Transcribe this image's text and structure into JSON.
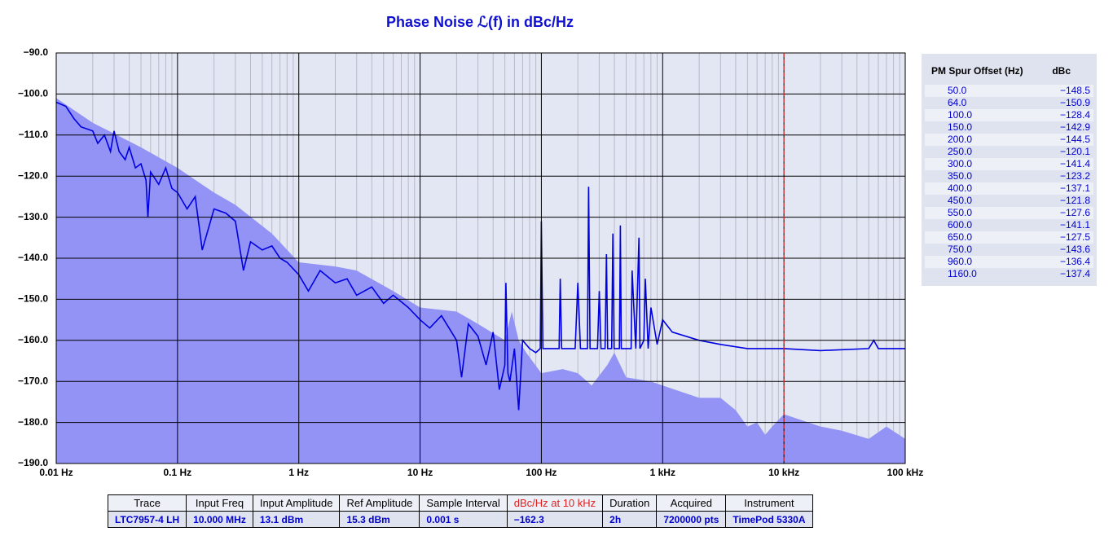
{
  "chart_data": {
    "type": "line",
    "title": "Phase Noise ℒ(f) in dBc/Hz",
    "log_x": true,
    "grid": true,
    "minor_grid": true,
    "xlim": [
      0.01,
      100000
    ],
    "ylim": [
      -190,
      -90
    ],
    "xticks": [
      {
        "value": 0.01,
        "label": "0.01 Hz"
      },
      {
        "value": 0.1,
        "label": "0.1 Hz"
      },
      {
        "value": 1,
        "label": "1 Hz"
      },
      {
        "value": 10,
        "label": "10 Hz"
      },
      {
        "value": 100,
        "label": "100 Hz"
      },
      {
        "value": 1000,
        "label": "1 kHz"
      },
      {
        "value": 10000,
        "label": "10 kHz"
      },
      {
        "value": 100000,
        "label": "100 kHz"
      }
    ],
    "yticks": [
      {
        "value": -190,
        "label": "−190.0"
      },
      {
        "value": -180,
        "label": "−180.0"
      },
      {
        "value": -170,
        "label": "−170.0"
      },
      {
        "value": -160,
        "label": "−160.0"
      },
      {
        "value": -150,
        "label": "−150.0"
      },
      {
        "value": -140,
        "label": "−140.0"
      },
      {
        "value": -130,
        "label": "−130.0"
      },
      {
        "value": -120,
        "label": "−120.0"
      },
      {
        "value": -110,
        "label": "−110.0"
      },
      {
        "value": -100,
        "label": "−100.0"
      },
      {
        "value": -90,
        "label": "−90.0"
      }
    ],
    "marker_x": 10000,
    "marker_color": "#e02020",
    "series": [
      {
        "kind": "area",
        "color": "#9393f5",
        "x": [
          0.01,
          0.02,
          0.05,
          0.1,
          0.2,
          0.3,
          0.6,
          1,
          2,
          3,
          6,
          10,
          20,
          30,
          50,
          57,
          65,
          75,
          100,
          150,
          200,
          260,
          350,
          400,
          500,
          800,
          1000,
          2000,
          3000,
          4000,
          5000,
          6000,
          7000,
          8000,
          10000,
          20000,
          30000,
          50000,
          70000,
          100000
        ],
        "values": [
          -101,
          -107,
          -113,
          -118,
          -124,
          -127,
          -134,
          -141,
          -142,
          -143,
          -148,
          -152,
          -153,
          -156,
          -160,
          -153,
          -160,
          -163,
          -168,
          -167,
          -168,
          -171,
          -166,
          -163,
          -169,
          -170,
          -171,
          -174,
          -174,
          -177,
          -181,
          -180,
          -183,
          -181,
          -178,
          -181,
          -182,
          -184,
          -181,
          -184
        ]
      },
      {
        "kind": "line",
        "color": "#0000e0",
        "x": [
          0.01,
          0.012,
          0.014,
          0.016,
          0.02,
          0.022,
          0.025,
          0.028,
          0.03,
          0.033,
          0.037,
          0.04,
          0.045,
          0.05,
          0.055,
          0.057,
          0.06,
          0.07,
          0.08,
          0.09,
          0.1,
          0.12,
          0.14,
          0.16,
          0.2,
          0.25,
          0.3,
          0.35,
          0.4,
          0.5,
          0.6,
          0.7,
          0.8,
          1,
          1.2,
          1.5,
          2,
          2.5,
          3,
          4,
          5,
          6,
          8,
          10,
          12,
          15,
          20,
          22,
          25,
          30,
          35,
          40,
          45,
          50,
          51,
          53,
          55,
          60,
          65,
          70,
          80,
          90,
          98,
          100,
          103,
          120,
          140,
          143,
          147,
          190,
          200,
          210,
          240,
          245,
          252,
          290,
          300,
          310,
          335,
          344,
          352,
          380,
          389,
          398,
          440,
          448,
          456,
          550,
          560,
          600,
          638,
          650,
          700,
          720,
          760,
          800,
          900,
          1000,
          1200,
          2000,
          3000,
          5000,
          10000,
          20000,
          50000,
          55000,
          60000,
          100000
        ],
        "values": [
          -102,
          -103,
          -106,
          -108,
          -109,
          -112,
          -110,
          -114,
          -109,
          -114,
          -116,
          -113,
          -118,
          -117,
          -121,
          -130,
          -119,
          -122,
          -118,
          -123,
          -124,
          -128,
          -125,
          -138,
          -128,
          -129,
          -131,
          -143,
          -136,
          -138,
          -137,
          -140,
          -141,
          -144,
          -148,
          -143,
          -146,
          -145,
          -149,
          -147,
          -151,
          -149,
          -152,
          -155,
          -157,
          -154,
          -160,
          -169,
          -156,
          -159,
          -166,
          -158,
          -172,
          -166,
          -146,
          -168,
          -170,
          -162,
          -177,
          -160,
          -162,
          -163,
          -162,
          -131,
          -162,
          -162,
          -162,
          -145,
          -162,
          -162,
          -146,
          -162,
          -162,
          -122.6,
          -162,
          -162,
          -148,
          -162,
          -162,
          -139,
          -162,
          -162,
          -134,
          -162,
          -162,
          -132,
          -162,
          -162,
          -143,
          -162,
          -135,
          -162,
          -160,
          -145,
          -162,
          -152,
          -161,
          -155,
          -158,
          -160,
          -161,
          -162,
          -162,
          -162.5,
          -162,
          -160,
          -162,
          -162
        ]
      }
    ]
  },
  "spur_table": {
    "headers": [
      "PM Spur Offset (Hz)",
      "dBc"
    ],
    "rows": [
      [
        "50.0",
        "−148.5"
      ],
      [
        "64.0",
        "−150.9"
      ],
      [
        "100.0",
        "−128.4"
      ],
      [
        "150.0",
        "−142.9"
      ],
      [
        "200.0",
        "−144.5"
      ],
      [
        "250.0",
        "−120.1"
      ],
      [
        "300.0",
        "−141.4"
      ],
      [
        "350.0",
        "−123.2"
      ],
      [
        "400.0",
        "−137.1"
      ],
      [
        "450.0",
        "−121.8"
      ],
      [
        "550.0",
        "−127.6"
      ],
      [
        "600.0",
        "−141.1"
      ],
      [
        "650.0",
        "−127.5"
      ],
      [
        "750.0",
        "−143.6"
      ],
      [
        "960.0",
        "−136.4"
      ],
      [
        "1160.0",
        "−137.4"
      ]
    ]
  },
  "info_table": {
    "headers": [
      "Trace",
      "Input Freq",
      "Input Amplitude",
      "Ref Amplitude",
      "Sample Interval",
      "dBc/Hz at 10 kHz",
      "Duration",
      "Acquired",
      "Instrument"
    ],
    "values": [
      "LTC7957-4 LH",
      "10.000 MHz",
      "13.1 dBm",
      "15.3 dBm",
      "0.001 s",
      "−162.3",
      "2h",
      "7200000 pts",
      "TimePod 5330A"
    ],
    "highlight_header": 5,
    "highlight_color": "#e02020"
  }
}
